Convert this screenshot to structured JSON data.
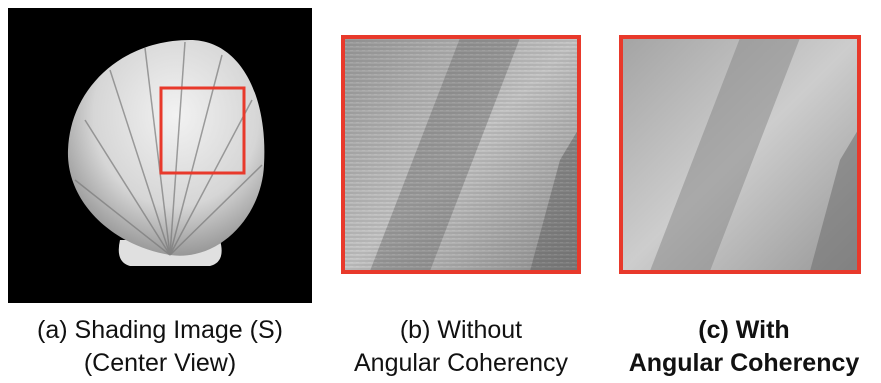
{
  "panels": [
    {
      "caption": [
        "(a) Shading Image (S)",
        "(Center View)"
      ]
    },
    {
      "caption": [
        "(b) Without",
        "Angular Coherency"
      ]
    },
    {
      "caption": [
        "(c) With",
        "Angular Coherency"
      ]
    }
  ]
}
